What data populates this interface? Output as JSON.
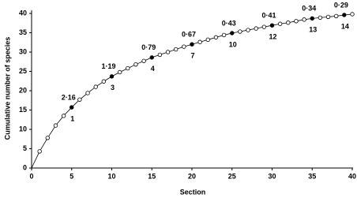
{
  "chart_data": {
    "type": "line",
    "x_label": "Section",
    "y_label": "Cumulative number of species",
    "x": [
      1,
      2,
      3,
      4,
      5,
      6,
      7,
      8,
      9,
      10,
      11,
      12,
      13,
      14,
      15,
      16,
      17,
      18,
      19,
      20,
      21,
      22,
      23,
      24,
      25,
      26,
      27,
      28,
      29,
      30,
      31,
      32,
      33,
      34,
      35,
      36,
      37,
      38,
      39,
      40
    ],
    "series": [
      {
        "color": "#000000",
        "values": [
          4.3,
          7.8,
          11,
          13.5,
          15.7,
          17.7,
          19.4,
          21.0,
          22.4,
          23.7,
          24.8,
          25.8,
          26.8,
          27.7,
          28.6,
          29.3,
          30.0,
          30.7,
          31.4,
          32.0,
          32.6,
          33.2,
          33.8,
          34.4,
          34.9,
          35.3,
          35.7,
          36.1,
          36.5,
          36.9,
          37.3,
          37.6,
          38.0,
          38.4,
          38.7,
          38.9,
          39.1,
          39.3,
          39.6,
          39.8
        ]
      }
    ],
    "filled_x": [
      5,
      10,
      15,
      20,
      25,
      30,
      35,
      39
    ],
    "annotations": [
      {
        "x": 5,
        "above": "2·16",
        "below": "1"
      },
      {
        "x": 10,
        "above": "1·19",
        "below": "3"
      },
      {
        "x": 15,
        "above": "0·79",
        "below": "4"
      },
      {
        "x": 20,
        "above": "0·67",
        "below": "7"
      },
      {
        "x": 25,
        "above": "0·43",
        "below": "10"
      },
      {
        "x": 30,
        "above": "0·41",
        "below": "12"
      },
      {
        "x": 35,
        "above": "0·34",
        "below": "13"
      },
      {
        "x": 39,
        "above": "0·29",
        "below": "14"
      }
    ],
    "xlim": [
      0,
      40
    ],
    "xticks": [
      0,
      5,
      10,
      15,
      20,
      25,
      30,
      35,
      40
    ],
    "ylim": [
      0,
      40
    ],
    "yticks": [
      0,
      5,
      10,
      15,
      20,
      25,
      30,
      35,
      40
    ]
  }
}
